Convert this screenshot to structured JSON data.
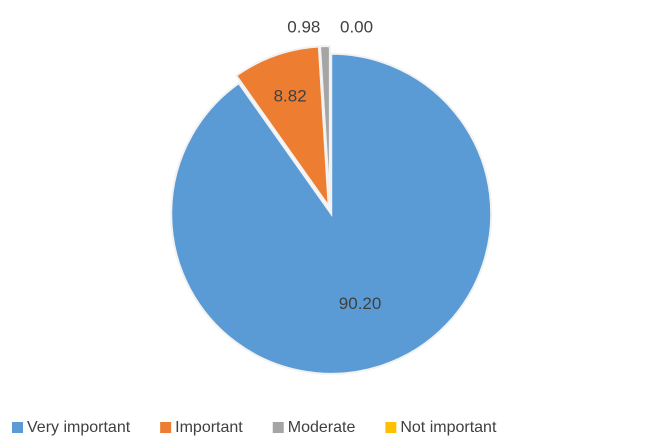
{
  "chart_data": {
    "type": "pie",
    "categories": [
      "Very important",
      "Important",
      "Moderate",
      "Not important"
    ],
    "values": [
      90.2,
      8.82,
      0.98,
      0.0
    ],
    "value_labels": [
      "90.20",
      "8.82",
      "0.98",
      "0.00"
    ],
    "colors": [
      "#5b9bd5",
      "#ed7d31",
      "#a5a5a5",
      "#ffc000"
    ],
    "legend": "bottom"
  }
}
